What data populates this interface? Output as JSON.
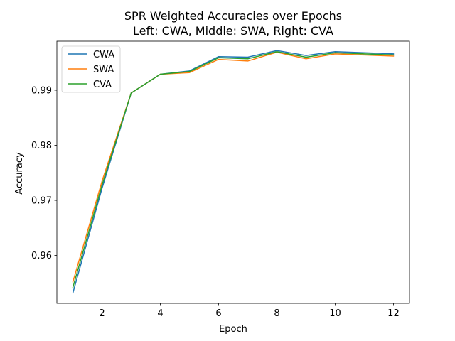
{
  "chart_data": {
    "type": "line",
    "title": "SPR Weighted Accuracies over Epochs",
    "subtitle": "Left: CWA, Middle: SWA, Right: CVA",
    "xlabel": "Epoch",
    "ylabel": "Accuracy",
    "xlim": [
      0.45,
      12.55
    ],
    "ylim": [
      0.9513,
      0.9989
    ],
    "x": [
      1,
      2,
      3,
      4,
      5,
      6,
      7,
      8,
      9,
      10,
      11,
      12
    ],
    "xticks": [
      2,
      4,
      6,
      8,
      10,
      12
    ],
    "xtick_labels": [
      "2",
      "4",
      "6",
      "8",
      "10",
      "12"
    ],
    "yticks": [
      0.96,
      0.97,
      0.98,
      0.99
    ],
    "ytick_labels": [
      "0.96",
      "0.97",
      "0.98",
      "0.99"
    ],
    "grid": false,
    "legend_position": "top-left",
    "series": [
      {
        "name": "CWA",
        "color": "#1f77b4",
        "values": [
          0.9532,
          0.9722,
          0.9895,
          0.9929,
          0.9935,
          0.9961,
          0.996,
          0.9972,
          0.9963,
          0.997,
          0.9968,
          0.9966
        ]
      },
      {
        "name": "SWA",
        "color": "#ff7f0e",
        "values": [
          0.9552,
          0.9735,
          0.9895,
          0.9929,
          0.9932,
          0.9956,
          0.9953,
          0.9969,
          0.9957,
          0.9966,
          0.9964,
          0.9962
        ]
      },
      {
        "name": "CVA",
        "color": "#2ca02c",
        "values": [
          0.9542,
          0.9728,
          0.9895,
          0.9929,
          0.9934,
          0.9959,
          0.9957,
          0.997,
          0.996,
          0.9968,
          0.9966,
          0.9964
        ]
      }
    ]
  }
}
